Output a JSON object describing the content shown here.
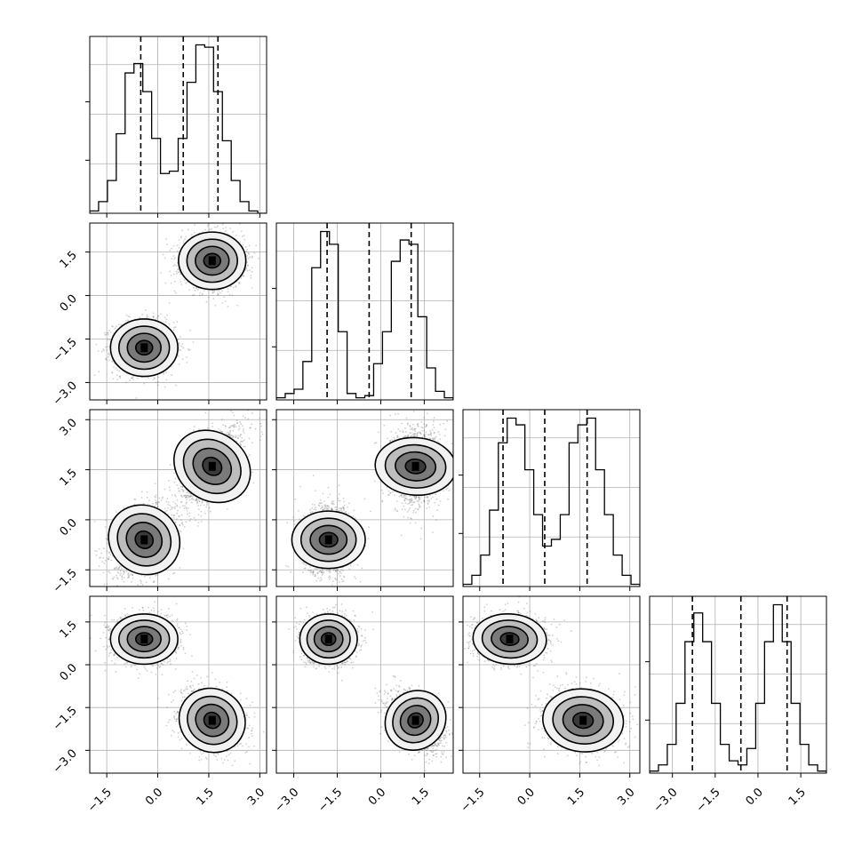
{
  "chart_data": {
    "type": "corner",
    "n_params": 4,
    "grid": true,
    "params": [
      {
        "range": [
          -2.0,
          3.2
        ],
        "ticks": [
          -1.5,
          0.0,
          1.5,
          3.0
        ],
        "tick_labels": [
          "−1.5",
          "0.0",
          "1.5",
          "3.0"
        ]
      },
      {
        "range": [
          -3.6,
          2.5
        ],
        "ticks": [
          -3.0,
          -1.5,
          0.0,
          1.5
        ],
        "tick_labels": [
          "−3.0",
          "−1.5",
          "0.0",
          "1.5"
        ]
      },
      {
        "range": [
          -2.0,
          3.3
        ],
        "ticks": [
          -1.5,
          0.0,
          1.5,
          3.0
        ],
        "tick_labels": [
          "−1.5",
          "0.0",
          "1.5",
          "3.0"
        ]
      },
      {
        "range": [
          -3.8,
          2.4
        ],
        "ticks": [
          -3.0,
          -1.5,
          0.0,
          1.5
        ],
        "tick_labels": [
          "−3.0",
          "−1.5",
          "0.0",
          "1.5"
        ]
      }
    ],
    "histograms": [
      {
        "counts": [
          1,
          5,
          14,
          34,
          60,
          64,
          52,
          32,
          17,
          18,
          32,
          56,
          72,
          71,
          52,
          31,
          14,
          5,
          1,
          0
        ],
        "quantiles": [
          -0.5,
          0.75,
          1.77
        ]
      },
      {
        "counts": [
          1,
          3,
          5,
          18,
          62,
          79,
          73,
          32,
          3,
          1,
          2,
          17,
          32,
          65,
          75,
          73,
          39,
          15,
          4,
          1
        ],
        "quantiles": [
          -1.85,
          -0.4,
          1.05
        ]
      },
      {
        "counts": [
          1,
          5,
          14,
          34,
          64,
          75,
          72,
          52,
          32,
          18,
          21,
          32,
          64,
          72,
          75,
          52,
          32,
          14,
          5,
          1
        ],
        "quantiles": [
          -0.8,
          0.45,
          1.72
        ]
      },
      {
        "counts": [
          1,
          4,
          14,
          34,
          64,
          78,
          64,
          34,
          14,
          6,
          4,
          12,
          34,
          64,
          82,
          64,
          34,
          14,
          4,
          1
        ],
        "quantiles": [
          -2.3,
          -0.6,
          1.02
        ]
      }
    ],
    "modes": [
      [
        -0.4,
        -1.8,
        -0.6,
        0.9
      ],
      [
        1.6,
        1.2,
        1.6,
        -1.95
      ]
    ],
    "mode_sigmas": [
      [
        0.45,
        0.45,
        0.5,
        0.4
      ],
      [
        0.45,
        0.45,
        0.55,
        0.5
      ]
    ],
    "mode_correlations": [
      {
        "pair": [
          0,
          1
        ],
        "rho": [
          0.0,
          0.0
        ]
      },
      {
        "pair": [
          0,
          2
        ],
        "rho": [
          0.3,
          0.55
        ]
      },
      {
        "pair": [
          0,
          3
        ],
        "rho": [
          0.0,
          -0.15
        ]
      },
      {
        "pair": [
          1,
          2
        ],
        "rho": [
          0.0,
          0.05
        ]
      },
      {
        "pair": [
          1,
          3
        ],
        "rho": [
          0.0,
          -0.4
        ]
      },
      {
        "pair": [
          2,
          3
        ],
        "rho": [
          -0.05,
          -0.05
        ]
      }
    ]
  }
}
